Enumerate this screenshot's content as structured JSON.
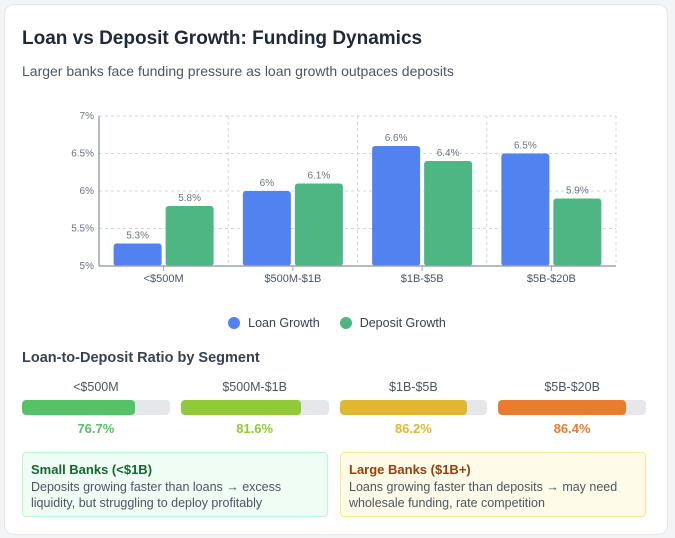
{
  "title": "Loan vs Deposit Growth: Funding Dynamics",
  "subtitle": "Larger banks face funding pressure as loan growth outpaces deposits",
  "chart_data": {
    "type": "bar",
    "categories": [
      "<$500M",
      "$500M-$1B",
      "$1B-$5B",
      "$5B-$20B"
    ],
    "series": [
      {
        "name": "Loan Growth",
        "values": [
          5.3,
          6.0,
          6.6,
          6.5
        ],
        "labels": [
          "5.3%",
          "6%",
          "6.6%",
          "6.5%"
        ],
        "color": "#5282f0"
      },
      {
        "name": "Deposit Growth",
        "values": [
          5.8,
          6.1,
          6.4,
          5.9
        ],
        "labels": [
          "5.8%",
          "6.1%",
          "6.4%",
          "5.9%"
        ],
        "color": "#4db683"
      }
    ],
    "ylim": [
      5,
      7
    ],
    "yticks": [
      5,
      5.5,
      6,
      6.5,
      7
    ],
    "ytick_labels": [
      "5%",
      "5.5%",
      "6%",
      "6.5%",
      "7%"
    ],
    "grid": true,
    "legend": "bottom"
  },
  "ltd": {
    "title": "Loan-to-Deposit Ratio by Segment",
    "segments": [
      {
        "label": "<$500M",
        "value": 76.7,
        "text": "76.7%",
        "color": "#56c266"
      },
      {
        "label": "$500M-$1B",
        "value": 81.6,
        "text": "81.6%",
        "color": "#90ca36"
      },
      {
        "label": "$1B-$5B",
        "value": 86.2,
        "text": "86.2%",
        "color": "#e1b731"
      },
      {
        "label": "$5B-$20B",
        "value": 86.4,
        "text": "86.4%",
        "color": "#ea7d2d"
      }
    ]
  },
  "notes": {
    "small": {
      "title": "Small Banks (<$1B)",
      "text": "Deposits growing faster than loans → excess liquidity, but struggling to deploy profitably"
    },
    "large": {
      "title": "Large Banks ($1B+)",
      "text": "Loans growing faster than deposits → may need wholesale funding, rate competition"
    }
  }
}
